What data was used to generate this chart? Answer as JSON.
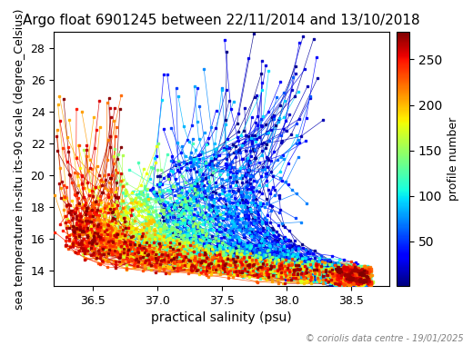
{
  "title": "Argo float 6901245 between 22/11/2014 and 13/10/2018",
  "xlabel": "practical salinity (psu)",
  "ylabel": "sea temperature in-situ its-90 scale (degree_Celsius)",
  "colorbar_label": "profile number",
  "copyright": "© coriolis data centre - 19/01/2025",
  "xlim": [
    36.2,
    38.8
  ],
  "ylim": [
    13.0,
    29.0
  ],
  "xticks": [
    36.5,
    37.0,
    37.5,
    38.0,
    38.5
  ],
  "yticks": [
    14,
    16,
    18,
    20,
    22,
    24,
    26,
    28
  ],
  "cmap": "jet",
  "n_profiles": 280,
  "profile_number_min": 1,
  "profile_number_max": 280,
  "colorbar_ticks": [
    50,
    100,
    150,
    200,
    250
  ],
  "seed": 12345
}
